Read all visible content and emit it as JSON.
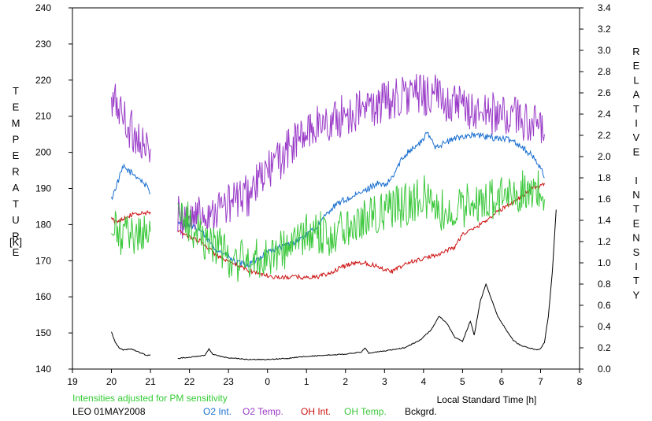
{
  "chart_data": {
    "type": "line",
    "left_axis_label": "TEMPERATURE",
    "left_axis_unit": "[K]",
    "right_axis_label": "RELATIVE INTENSITY",
    "x_axis_label": "Local Standard Time [h]",
    "x_axis": {
      "start": 19,
      "end": 8,
      "ticks": [
        "19",
        "20",
        "21",
        "22",
        "23",
        "0",
        "1",
        "2",
        "3",
        "4",
        "5",
        "6",
        "7",
        "8"
      ]
    },
    "left_axis": {
      "min": 140,
      "max": 240,
      "step": 10,
      "ticks": [
        "140",
        "150",
        "160",
        "170",
        "180",
        "190",
        "200",
        "210",
        "220",
        "230",
        "240"
      ]
    },
    "right_axis": {
      "min": 0.0,
      "max": 3.4,
      "step": 0.2,
      "ticks": [
        "0.0",
        "0.2",
        "0.4",
        "0.6",
        "0.8",
        "1.0",
        "1.2",
        "1.4",
        "1.6",
        "1.8",
        "2.0",
        "2.2",
        "2.4",
        "2.6",
        "2.8",
        "3.0",
        "3.2",
        "3.4"
      ]
    },
    "note": "Intensities adjusted for PM sensitivity",
    "station_date": "LEO 01MAY2008",
    "grid": false,
    "legend_position": "bottom",
    "series": [
      {
        "name": "O2 Int.",
        "axis": "right",
        "color": "#1a6fd0",
        "noise": 0.03,
        "points": [
          [
            20.0,
            1.6
          ],
          [
            20.1,
            1.7
          ],
          [
            20.3,
            1.9
          ],
          [
            20.5,
            1.85
          ],
          [
            20.7,
            1.8
          ],
          [
            20.9,
            1.72
          ],
          [
            21.0,
            1.65
          ],
          null,
          [
            21.7,
            1.4
          ],
          [
            22.0,
            1.35
          ],
          [
            22.3,
            1.3
          ],
          [
            22.6,
            1.15
          ],
          [
            22.9,
            1.08
          ],
          [
            23.2,
            1.0
          ],
          [
            23.5,
            0.98
          ],
          [
            23.8,
            1.05
          ],
          [
            24.1,
            1.12
          ],
          [
            24.4,
            1.15
          ],
          [
            24.7,
            1.2
          ],
          [
            25.0,
            1.26
          ],
          [
            25.3,
            1.35
          ],
          [
            25.6,
            1.5
          ],
          [
            25.9,
            1.58
          ],
          [
            26.2,
            1.62
          ],
          [
            26.5,
            1.68
          ],
          [
            26.8,
            1.75
          ],
          [
            27.0,
            1.72
          ],
          [
            27.2,
            1.8
          ],
          [
            27.4,
            1.95
          ],
          [
            27.6,
            2.05
          ],
          [
            27.9,
            2.12
          ],
          [
            28.1,
            2.22
          ],
          [
            28.3,
            2.1
          ],
          [
            28.5,
            2.12
          ],
          [
            28.8,
            2.17
          ],
          [
            29.1,
            2.2
          ],
          [
            29.4,
            2.2
          ],
          [
            29.7,
            2.18
          ],
          [
            30.0,
            2.17
          ],
          [
            30.3,
            2.15
          ],
          [
            30.5,
            2.1
          ],
          [
            30.8,
            2.0
          ],
          [
            31.0,
            1.9
          ],
          [
            31.1,
            1.8
          ]
        ]
      },
      {
        "name": "O2 Temp.",
        "axis": "left",
        "color": "#9a3cc8",
        "noise": 6,
        "points": [
          [
            20.0,
            212
          ],
          [
            20.1,
            214
          ],
          [
            20.3,
            210
          ],
          [
            20.5,
            206
          ],
          [
            20.7,
            204
          ],
          [
            20.9,
            200
          ],
          [
            21.0,
            201
          ],
          null,
          [
            21.7,
            182
          ],
          [
            22.0,
            182
          ],
          [
            22.3,
            183
          ],
          [
            22.6,
            184
          ],
          [
            22.9,
            185
          ],
          [
            23.2,
            187
          ],
          [
            23.5,
            188
          ],
          [
            23.8,
            192
          ],
          [
            24.1,
            196
          ],
          [
            24.4,
            199
          ],
          [
            24.7,
            203
          ],
          [
            25.0,
            205
          ],
          [
            25.3,
            208
          ],
          [
            25.6,
            208
          ],
          [
            25.9,
            210
          ],
          [
            26.2,
            211
          ],
          [
            26.5,
            212
          ],
          [
            26.8,
            213
          ],
          [
            27.0,
            214
          ],
          [
            27.3,
            215
          ],
          [
            27.6,
            216
          ],
          [
            27.9,
            216
          ],
          [
            28.2,
            216
          ],
          [
            28.5,
            215
          ],
          [
            28.8,
            213
          ],
          [
            29.1,
            212
          ],
          [
            29.4,
            211
          ],
          [
            29.7,
            211
          ],
          [
            30.0,
            210
          ],
          [
            30.3,
            210
          ],
          [
            30.6,
            209
          ],
          [
            30.9,
            207
          ],
          [
            31.1,
            205
          ]
        ]
      },
      {
        "name": "OH Int.",
        "axis": "right",
        "color": "#cc1010",
        "noise": 0.02,
        "points": [
          [
            20.0,
            1.42
          ],
          [
            20.1,
            1.38
          ],
          [
            20.3,
            1.42
          ],
          [
            20.5,
            1.45
          ],
          [
            20.7,
            1.46
          ],
          [
            20.9,
            1.47
          ],
          [
            21.0,
            1.48
          ],
          null,
          [
            21.7,
            1.3
          ],
          [
            22.0,
            1.25
          ],
          [
            22.3,
            1.2
          ],
          [
            22.6,
            1.1
          ],
          [
            22.9,
            1.02
          ],
          [
            23.2,
            0.98
          ],
          [
            23.5,
            0.93
          ],
          [
            23.8,
            0.9
          ],
          [
            24.1,
            0.87
          ],
          [
            24.4,
            0.86
          ],
          [
            24.7,
            0.87
          ],
          [
            25.0,
            0.86
          ],
          [
            25.3,
            0.87
          ],
          [
            25.6,
            0.9
          ],
          [
            25.9,
            0.96
          ],
          [
            26.2,
            1.0
          ],
          [
            26.5,
            1.0
          ],
          [
            26.8,
            0.97
          ],
          [
            27.0,
            0.94
          ],
          [
            27.2,
            0.92
          ],
          [
            27.4,
            0.96
          ],
          [
            27.6,
            1.0
          ],
          [
            27.9,
            1.03
          ],
          [
            28.2,
            1.06
          ],
          [
            28.5,
            1.1
          ],
          [
            28.8,
            1.15
          ],
          [
            29.0,
            1.27
          ],
          [
            29.3,
            1.32
          ],
          [
            29.6,
            1.4
          ],
          [
            29.9,
            1.48
          ],
          [
            30.2,
            1.55
          ],
          [
            30.5,
            1.62
          ],
          [
            30.7,
            1.68
          ],
          [
            30.9,
            1.72
          ],
          [
            31.0,
            1.72
          ],
          [
            31.1,
            1.75
          ]
        ]
      },
      {
        "name": "OH Temp.",
        "axis": "left",
        "color": "#3cc83c",
        "noise": 6,
        "points": [
          [
            20.0,
            176
          ],
          [
            20.1,
            178
          ],
          [
            20.3,
            176
          ],
          [
            20.5,
            178
          ],
          [
            20.7,
            177
          ],
          [
            20.9,
            179
          ],
          [
            21.0,
            178
          ],
          null,
          [
            21.7,
            183
          ],
          [
            22.0,
            180
          ],
          [
            22.3,
            177
          ],
          [
            22.6,
            175
          ],
          [
            22.9,
            172
          ],
          [
            23.2,
            170
          ],
          [
            23.5,
            170
          ],
          [
            23.8,
            171
          ],
          [
            24.1,
            172
          ],
          [
            24.4,
            173
          ],
          [
            24.7,
            175
          ],
          [
            25.0,
            177
          ],
          [
            25.3,
            178
          ],
          [
            25.6,
            177
          ],
          [
            25.9,
            179
          ],
          [
            26.2,
            181
          ],
          [
            26.5,
            182
          ],
          [
            26.8,
            183
          ],
          [
            27.1,
            184
          ],
          [
            27.4,
            185
          ],
          [
            27.7,
            186
          ],
          [
            28.0,
            188
          ],
          [
            28.3,
            185
          ],
          [
            28.6,
            183
          ],
          [
            28.9,
            184
          ],
          [
            29.2,
            186
          ],
          [
            29.5,
            186
          ],
          [
            29.8,
            187
          ],
          [
            30.1,
            188
          ],
          [
            30.4,
            189
          ],
          [
            30.7,
            190
          ],
          [
            31.0,
            189
          ],
          [
            31.1,
            187
          ]
        ]
      },
      {
        "name": "Bckgrd.",
        "axis": "right",
        "color": "#000000",
        "noise": 0.004,
        "points": [
          [
            20.0,
            0.35
          ],
          [
            20.1,
            0.25
          ],
          [
            20.2,
            0.2
          ],
          [
            20.3,
            0.18
          ],
          [
            20.5,
            0.19
          ],
          [
            20.7,
            0.16
          ],
          [
            20.9,
            0.13
          ],
          [
            21.0,
            0.13
          ],
          null,
          [
            21.7,
            0.1
          ],
          [
            22.2,
            0.12
          ],
          [
            22.4,
            0.13
          ],
          [
            22.5,
            0.19
          ],
          [
            22.6,
            0.14
          ],
          [
            22.9,
            0.11
          ],
          [
            23.5,
            0.09
          ],
          [
            24.0,
            0.09
          ],
          [
            24.5,
            0.1
          ],
          [
            25.0,
            0.12
          ],
          [
            25.5,
            0.13
          ],
          [
            26.0,
            0.14
          ],
          [
            26.4,
            0.16
          ],
          [
            26.5,
            0.2
          ],
          [
            26.6,
            0.15
          ],
          [
            27.0,
            0.17
          ],
          [
            27.5,
            0.2
          ],
          [
            27.9,
            0.27
          ],
          [
            28.2,
            0.37
          ],
          [
            28.4,
            0.5
          ],
          [
            28.6,
            0.43
          ],
          [
            28.8,
            0.3
          ],
          [
            29.0,
            0.26
          ],
          [
            29.2,
            0.45
          ],
          [
            29.3,
            0.32
          ],
          [
            29.45,
            0.63
          ],
          [
            29.6,
            0.8
          ],
          [
            29.75,
            0.65
          ],
          [
            29.9,
            0.5
          ],
          [
            30.1,
            0.38
          ],
          [
            30.3,
            0.27
          ],
          [
            30.5,
            0.22
          ],
          [
            30.7,
            0.2
          ],
          [
            30.9,
            0.18
          ],
          [
            31.0,
            0.19
          ],
          [
            31.1,
            0.25
          ],
          [
            31.2,
            0.5
          ],
          [
            31.3,
            0.9
          ],
          [
            31.4,
            1.5
          ]
        ]
      }
    ]
  }
}
